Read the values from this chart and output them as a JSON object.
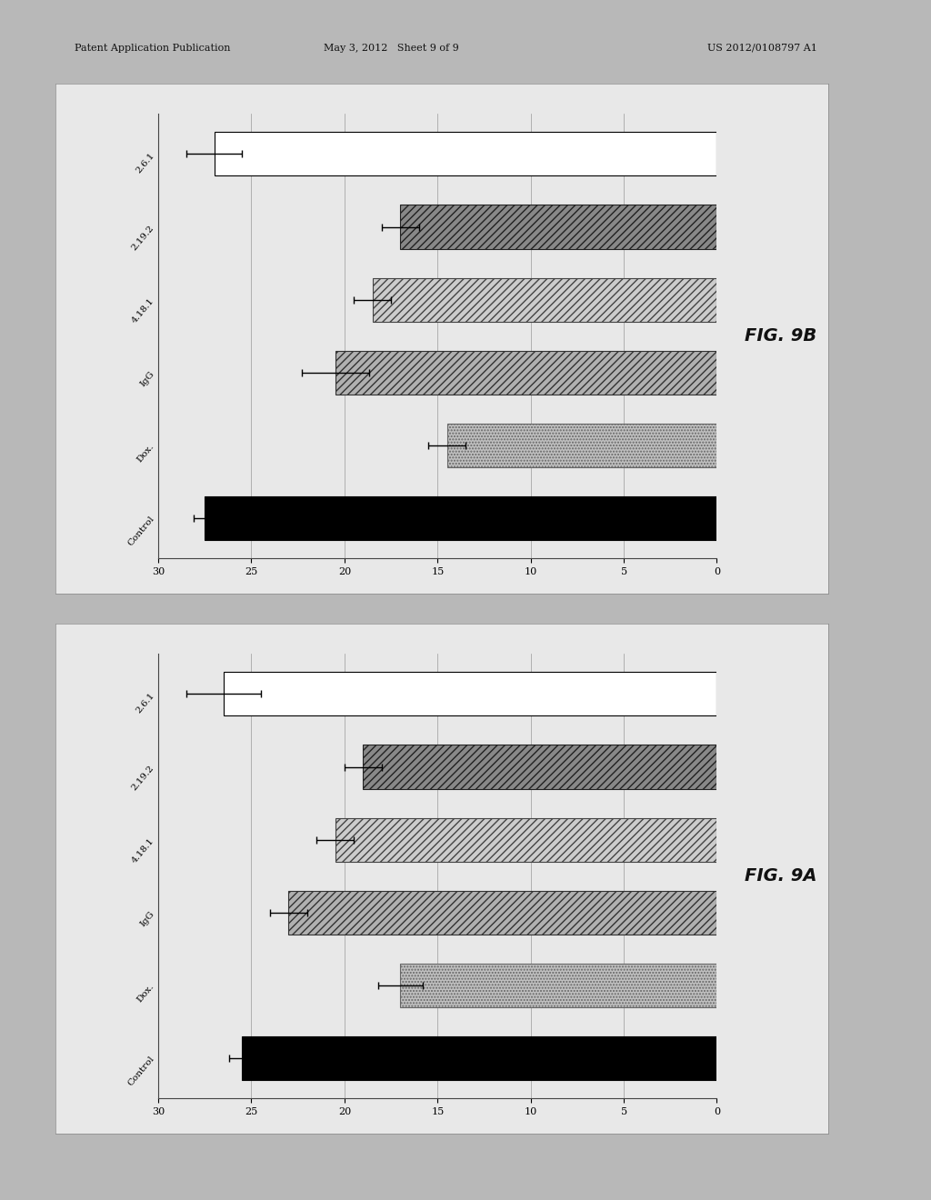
{
  "fig9b": {
    "title": "FIG. 9B",
    "categories": [
      "Control",
      "Dox.",
      "IgG",
      "4.18.1",
      "2.19.2",
      "2.6.1"
    ],
    "values": [
      27.5,
      14.5,
      20.5,
      18.5,
      17.0,
      27.0
    ],
    "errors": [
      0.6,
      1.0,
      1.8,
      1.0,
      1.0,
      1.5
    ],
    "xlim": [
      0,
      30
    ],
    "xticks": [
      0,
      5,
      10,
      15,
      20,
      25,
      30
    ]
  },
  "fig9a": {
    "title": "FIG. 9A",
    "categories": [
      "Control",
      "Dox.",
      "IgG",
      "4.18.1",
      "2.19.2",
      "2.6.1"
    ],
    "values": [
      25.5,
      17.0,
      23.0,
      20.5,
      19.0,
      26.5
    ],
    "errors": [
      0.7,
      1.2,
      1.0,
      1.0,
      1.0,
      2.0
    ],
    "xlim": [
      0,
      30
    ],
    "xticks": [
      0,
      5,
      10,
      15,
      20,
      25,
      30
    ]
  },
  "background_color": "#d4d4d4",
  "panel_background": "#e8e8e8",
  "page_background": "#b8b8b8",
  "header_text_left": "Patent Application Publication",
  "header_text_mid": "May 3, 2012   Sheet 9 of 9",
  "header_text_right": "US 2012/0108797 A1",
  "bar_styles": [
    {
      "label": "Control",
      "facecolor": "#000000",
      "hatch": "",
      "edgecolor": "#000000",
      "hatch_color": "#000000"
    },
    {
      "label": "Dox.",
      "facecolor": "#c0c0c0",
      "hatch": ".....",
      "edgecolor": "#666666",
      "hatch_color": "#888888"
    },
    {
      "label": "IgG",
      "facecolor": "#b0b0b0",
      "hatch": "////",
      "edgecolor": "#333333",
      "hatch_color": "#333333"
    },
    {
      "label": "4.18.1",
      "facecolor": "#cccccc",
      "hatch": "////",
      "edgecolor": "#444444",
      "hatch_color": "#555555"
    },
    {
      "label": "2.19.2",
      "facecolor": "#888888",
      "hatch": "////",
      "edgecolor": "#222222",
      "hatch_color": "#444444"
    },
    {
      "label": "2.6.1",
      "facecolor": "#ffffff",
      "hatch": "",
      "edgecolor": "#000000",
      "hatch_color": "#000000"
    }
  ]
}
